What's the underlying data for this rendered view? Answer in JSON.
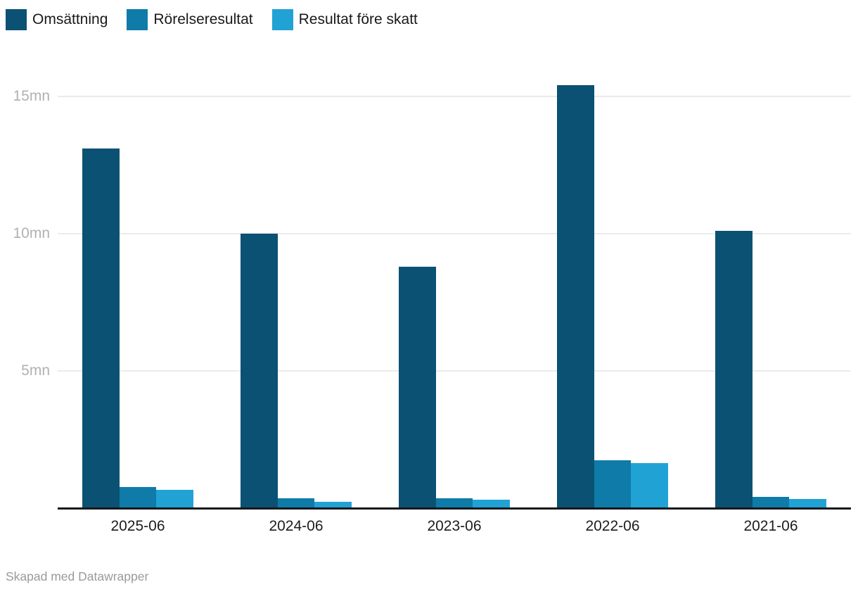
{
  "footer": {
    "credit": "Skapad med Datawrapper"
  },
  "colors": {
    "background": "#ffffff",
    "gridline": "#ebebeb",
    "axis_line": "#16181c",
    "y_tick_text": "#b1b1b1",
    "x_tick_text": "#1d1d1e",
    "legend_text": "#18191c",
    "footer_text": "#9a9a9a"
  },
  "legend": {
    "position": "top-left",
    "items": [
      {
        "label": "Omsättning",
        "color": "#0b5173"
      },
      {
        "label": "Rörelseresultat",
        "color": "#0f7ba8"
      },
      {
        "label": "Resultat före skatt",
        "color": "#21a2d5"
      }
    ]
  },
  "chart_data": {
    "type": "bar",
    "title": "",
    "xlabel": "",
    "ylabel": "",
    "unit": "mn",
    "categories": [
      "2025-06",
      "2024-06",
      "2023-06",
      "2022-06",
      "2021-06"
    ],
    "series": [
      {
        "name": "Omsättning",
        "color": "#0b5173",
        "values": [
          13.1,
          10.0,
          8.8,
          15.4,
          10.1
        ]
      },
      {
        "name": "Rörelseresultat",
        "color": "#0f7ba8",
        "values": [
          0.78,
          0.35,
          0.35,
          1.74,
          0.42
        ]
      },
      {
        "name": "Resultat före skatt",
        "color": "#21a2d5",
        "values": [
          0.66,
          0.22,
          0.31,
          1.64,
          0.33
        ]
      }
    ],
    "y_ticks": [
      {
        "value": 5,
        "label": "5mn"
      },
      {
        "value": 10,
        "label": "10mn"
      },
      {
        "value": 15,
        "label": "15mn"
      }
    ],
    "ylim": [
      0,
      16.2
    ],
    "grid": true,
    "legend_position": "top-left"
  }
}
